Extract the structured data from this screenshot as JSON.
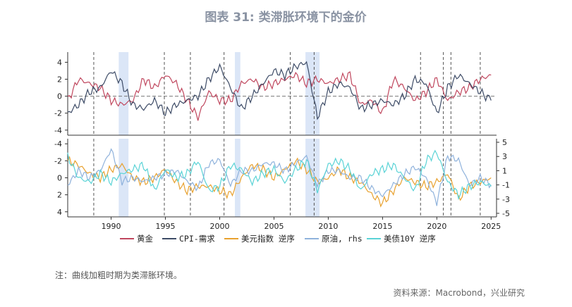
{
  "title": "图表 31: 类滞胀环境下的金价",
  "note": "注：曲线加粗时期为类滞胀环境。",
  "source": "资料来源：Macrobond，兴业研究",
  "colors": {
    "gold": "#c0475e",
    "cpi": "#3d4b66",
    "usd": "#e8a12e",
    "oil": "#8fb2dc",
    "ust": "#5ad3d6",
    "shade": "#dbe6f7",
    "crisis_shade": "#6f95dd"
  },
  "chart_data": [
    {
      "type": "line",
      "panel": "top",
      "xlim": [
        1986,
        2025.5
      ],
      "ylim": [
        -4.6,
        5.2
      ],
      "yticks": [
        "4",
        "2",
        "0",
        "-2",
        "-4"
      ],
      "ytick_values": [
        4,
        2,
        0,
        -2,
        -4
      ],
      "zero_line": true,
      "stagflation_periods": [
        [
          1990.7,
          1991.6
        ],
        [
          2001.4,
          2001.9
        ],
        [
          2007.9,
          2009.2
        ]
      ],
      "cycle_markers": [
        1988.4,
        1994.9,
        1997.3,
        2000.4,
        2006.5,
        2008.7,
        2018.5,
        2020.6,
        2021.3,
        2024.0
      ],
      "series": [
        {
          "name": "黄金",
          "key": "gold",
          "x": [
            1986,
            1987,
            1988,
            1989,
            1990,
            1991,
            1992,
            1993,
            1994,
            1995,
            1996,
            1997,
            1998,
            1999,
            2000,
            2001,
            2002,
            2003,
            2004,
            2005,
            2006,
            2007,
            2008,
            2009,
            2010,
            2011,
            2012,
            2013,
            2014,
            2015,
            2016,
            2017,
            2018,
            2019,
            2020,
            2021,
            2022,
            2023,
            2024,
            2025
          ],
          "y": [
            -0.5,
            2.0,
            1.5,
            1.0,
            -0.5,
            -1.0,
            -0.5,
            2.0,
            1.0,
            2.5,
            1.5,
            -0.5,
            -2.5,
            0.5,
            -0.5,
            -0.5,
            1.5,
            2.0,
            1.0,
            1.5,
            2.0,
            2.5,
            1.5,
            2.0,
            1.5,
            2.0,
            2.5,
            -1.0,
            -0.5,
            -2.0,
            2.0,
            1.0,
            -0.5,
            0.5,
            2.0,
            -0.5,
            0.5,
            1.0,
            2.0,
            2.5
          ]
        },
        {
          "name": "CPI-需求",
          "key": "cpi",
          "x": [
            1986,
            1987,
            1988,
            1989,
            1990,
            1991,
            1992,
            1993,
            1994,
            1995,
            1996,
            1997,
            1998,
            1999,
            2000,
            2001,
            2002,
            2003,
            2004,
            2005,
            2006,
            2007,
            2008,
            2009,
            2010,
            2011,
            2012,
            2013,
            2014,
            2015,
            2016,
            2017,
            2018,
            2019,
            2020,
            2021,
            2022,
            2023,
            2024,
            2025
          ],
          "y": [
            -2.0,
            -1.0,
            0.5,
            1.0,
            3.0,
            1.5,
            -1.0,
            -1.5,
            -0.5,
            -2.0,
            -1.0,
            -0.5,
            0.0,
            2.0,
            3.5,
            1.0,
            -1.5,
            0.0,
            1.5,
            3.0,
            2.5,
            3.5,
            4.0,
            -2.5,
            0.5,
            1.5,
            1.0,
            -1.5,
            -1.0,
            -0.5,
            -1.0,
            0.0,
            2.0,
            1.5,
            -2.0,
            1.0,
            2.5,
            1.5,
            0.5,
            -0.5
          ]
        }
      ]
    },
    {
      "type": "line",
      "panel": "bottom",
      "xlim": [
        1986,
        2025.5
      ],
      "ylim": [
        -4.6,
        4.6
      ],
      "yticks_left": [
        "-4",
        "-2",
        "0",
        "2",
        "4"
      ],
      "yticks_left_values": [
        -4,
        -2,
        0,
        2,
        4
      ],
      "left_axis_inverted": true,
      "yticks_right": [
        "5",
        "3",
        "1",
        "-1",
        "-3",
        "-5"
      ],
      "yticks_right_values": [
        5,
        3,
        1,
        -1,
        -3,
        -5
      ],
      "xticks": [
        "1990",
        "1995",
        "2000",
        "2005",
        "2010",
        "2015",
        "2020",
        "2025"
      ],
      "xtick_values": [
        1990,
        1995,
        2000,
        2005,
        2010,
        2015,
        2020,
        2025
      ],
      "series": [
        {
          "name": "美元指数 逆序",
          "key": "usd",
          "x": [
            1986,
            1987,
            1988,
            1989,
            1990,
            1991,
            1992,
            1993,
            1994,
            1995,
            1996,
            1997,
            1998,
            1999,
            2000,
            2001,
            2002,
            2003,
            2004,
            2005,
            2006,
            2007,
            2008,
            2009,
            2010,
            2011,
            2012,
            2013,
            2014,
            2015,
            2016,
            2017,
            2018,
            2019,
            2020,
            2021,
            2022,
            2023,
            2024,
            2025
          ],
          "y": [
            -2.0,
            -1.5,
            -0.5,
            0.0,
            -1.0,
            -1.5,
            0.0,
            0.5,
            0.0,
            -1.0,
            0.5,
            1.5,
            1.0,
            1.0,
            1.5,
            2.0,
            0.0,
            -1.5,
            -1.0,
            0.0,
            -1.0,
            -2.0,
            -1.0,
            0.5,
            0.0,
            -1.0,
            0.0,
            0.5,
            2.0,
            3.0,
            1.5,
            0.0,
            0.5,
            1.0,
            0.5,
            -0.5,
            2.5,
            1.0,
            0.5,
            0.0
          ]
        },
        {
          "name": "原油, rhs",
          "key": "oil",
          "x": [
            1986,
            1987,
            1988,
            1989,
            1990,
            1991,
            1992,
            1993,
            1994,
            1995,
            1996,
            1997,
            1998,
            1999,
            2000,
            2001,
            2002,
            2003,
            2004,
            2005,
            2006,
            2007,
            2008,
            2009,
            2010,
            2011,
            2012,
            2013,
            2014,
            2015,
            2016,
            2017,
            2018,
            2019,
            2020,
            2021,
            2022,
            2023,
            2024,
            2025
          ],
          "y": [
            -1.0,
            1.0,
            0.0,
            1.0,
            4.0,
            -0.5,
            0.0,
            -0.5,
            0.0,
            0.5,
            1.0,
            -0.5,
            -1.5,
            2.0,
            2.5,
            -1.0,
            1.0,
            1.0,
            2.0,
            2.0,
            1.0,
            2.0,
            3.0,
            -1.0,
            1.0,
            1.0,
            0.0,
            0.0,
            -1.5,
            -2.5,
            -1.0,
            0.5,
            1.5,
            0.0,
            -3.5,
            3.0,
            2.5,
            -1.0,
            0.0,
            -1.0
          ]
        },
        {
          "name": "美债10Y 逆序",
          "key": "ust",
          "x": [
            1986,
            1987,
            1988,
            1989,
            1990,
            1991,
            1992,
            1993,
            1994,
            1995,
            1996,
            1997,
            1998,
            1999,
            2000,
            2001,
            2002,
            2003,
            2004,
            2005,
            2006,
            2007,
            2008,
            2009,
            2010,
            2011,
            2012,
            2013,
            2014,
            2015,
            2016,
            2017,
            2018,
            2019,
            2020,
            2021,
            2022,
            2023,
            2024,
            2025
          ],
          "y": [
            -2.5,
            0.0,
            0.5,
            -0.5,
            0.5,
            -0.5,
            -1.0,
            -1.5,
            1.5,
            -1.0,
            0.0,
            -0.5,
            -2.0,
            1.5,
            1.0,
            -1.5,
            -1.0,
            0.5,
            -0.5,
            -1.0,
            0.5,
            -1.0,
            -2.0,
            1.5,
            -1.5,
            -2.0,
            -1.0,
            1.5,
            -0.5,
            -1.0,
            -1.5,
            0.0,
            1.5,
            -2.0,
            -3.0,
            0.5,
            2.0,
            1.0,
            0.5,
            1.0
          ]
        }
      ]
    }
  ],
  "legend": [
    {
      "label": "黄金",
      "key": "gold"
    },
    {
      "label": "CPI-需求",
      "key": "cpi"
    },
    {
      "label": "美元指数 逆序",
      "key": "usd"
    },
    {
      "label": "原油, rhs",
      "key": "oil"
    },
    {
      "label": "美债10Y 逆序",
      "key": "ust"
    }
  ]
}
